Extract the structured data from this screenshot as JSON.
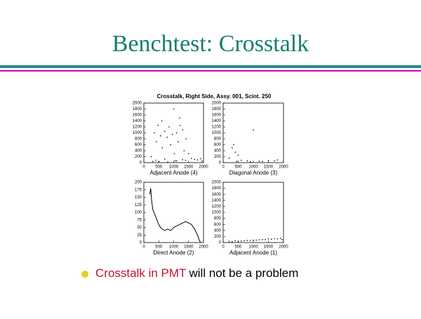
{
  "slide": {
    "title": "Benchtest: Crosstalk",
    "figure_title": "Crosstalk, Right Side, Assy. 001, Scint. 250",
    "bullet": {
      "highlight": "Crosstalk in PMT",
      "rest": "will not be a problem"
    }
  },
  "chart_data": [
    {
      "type": "scatter",
      "xlabel": "Adjacent Anode (4)",
      "color": "#000000",
      "xlim": [
        0,
        2000
      ],
      "xticks": [
        0,
        500,
        1000,
        1500,
        2000
      ],
      "ylim": [
        0,
        2000
      ],
      "yticks": [
        0,
        200,
        400,
        600,
        800,
        1000,
        1200,
        1400,
        1600,
        1800,
        2000
      ],
      "x": [
        350,
        420,
        480,
        560,
        620,
        700,
        780,
        850,
        900,
        960,
        1020,
        1100,
        1150,
        1220,
        1300,
        1350,
        1420,
        1500,
        250,
        600,
        1000,
        1200,
        400,
        700,
        1050,
        1300,
        1600,
        1800,
        1950,
        300,
        500,
        800,
        1100,
        1400,
        1700,
        1900
      ],
      "values": [
        1000,
        700,
        1250,
        900,
        500,
        1050,
        850,
        1200,
        600,
        950,
        300,
        1000,
        700,
        1250,
        1100,
        400,
        800,
        300,
        200,
        1400,
        1800,
        1500,
        80,
        120,
        60,
        100,
        140,
        90,
        50,
        40,
        30,
        20,
        60,
        80,
        110,
        130
      ]
    },
    {
      "type": "scatter",
      "xlabel": "Diagonal Anode (3)",
      "color": "#000000",
      "xlim": [
        0,
        2000
      ],
      "xticks": [
        0,
        500,
        1000,
        1500,
        2000
      ],
      "ylim": [
        0,
        2000
      ],
      "yticks": [
        0,
        200,
        400,
        600,
        800,
        1000,
        1200,
        1400,
        1600,
        1800,
        2000
      ],
      "x": [
        300,
        400,
        500,
        350,
        1000,
        600,
        800,
        1200,
        1500,
        1800,
        200,
        450,
        900,
        1300,
        1700
      ],
      "values": [
        500,
        350,
        250,
        600,
        1100,
        80,
        60,
        50,
        70,
        90,
        150,
        40,
        30,
        40,
        60
      ]
    },
    {
      "type": "line",
      "xlabel": "Direct Anode (2)",
      "color": "#000000",
      "xlim": [
        0,
        2000
      ],
      "xticks": [
        0,
        500,
        1000,
        1500,
        2000
      ],
      "ylim": [
        0,
        200
      ],
      "yticks": [
        0,
        25,
        50,
        75,
        100,
        125,
        150,
        175,
        200
      ],
      "x": [
        200,
        230,
        260,
        300,
        340,
        380,
        420,
        460,
        500,
        560,
        620,
        700,
        800,
        900,
        1000,
        1100,
        1200,
        1300,
        1400,
        1500,
        1600,
        1700,
        1800,
        1850,
        1900
      ],
      "values": [
        160,
        180,
        140,
        110,
        100,
        90,
        80,
        70,
        60,
        50,
        45,
        40,
        45,
        40,
        50,
        55,
        60,
        65,
        70,
        65,
        60,
        45,
        25,
        10,
        0
      ]
    },
    {
      "type": "scatter",
      "xlabel": "Adjacent Anode (1)",
      "color": "#000000",
      "xlim": [
        0,
        2000
      ],
      "xticks": [
        0,
        500,
        1000,
        1500,
        2000
      ],
      "ylim": [
        0,
        2000
      ],
      "yticks": [
        0,
        200,
        400,
        600,
        800,
        1000,
        1200,
        1400,
        1600,
        1800,
        2000
      ],
      "x": [
        200,
        400,
        600,
        800,
        1000,
        1200,
        1400,
        1600,
        1800,
        1950,
        300,
        700,
        1100,
        1500,
        1900,
        500,
        900,
        1300,
        1700
      ],
      "values": [
        40,
        60,
        50,
        70,
        80,
        90,
        100,
        110,
        120,
        100,
        30,
        60,
        80,
        120,
        140,
        40,
        70,
        100,
        130
      ]
    }
  ]
}
